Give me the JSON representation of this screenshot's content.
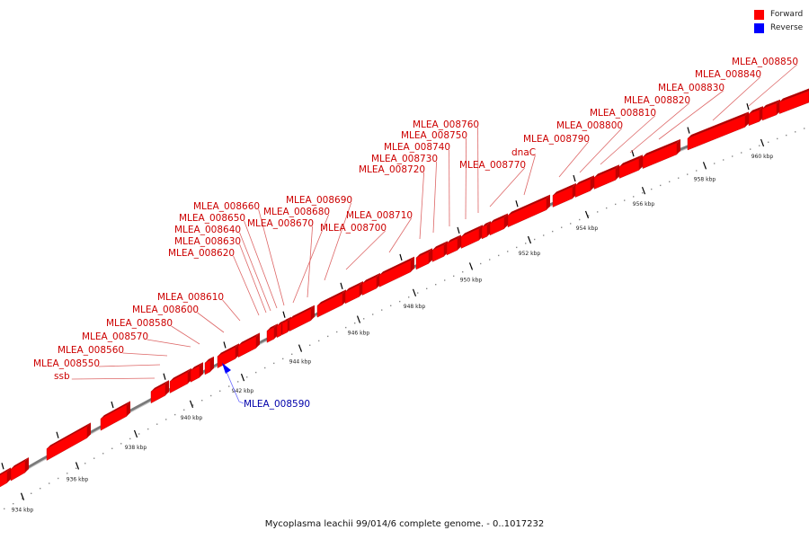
{
  "legend": {
    "forward_label": "Forward",
    "reverse_label": "Reverse",
    "forward_color": "#ff0000",
    "reverse_color": "#0000ff"
  },
  "footer": "Mycoplasma leachii 99/014/6 complete genome. - 0..1017232",
  "ticks": [
    "934 kbp",
    "936 kbp",
    "938 kbp",
    "940 kbp",
    "942 kbp",
    "944 kbp",
    "946 kbp",
    "948 kbp",
    "950 kbp",
    "952 kbp",
    "954 kbp",
    "956 kbp",
    "958 kbp",
    "960 kbp"
  ],
  "genes": [
    {
      "name": "ssb",
      "strand": "forward"
    },
    {
      "name": "MLEA_008550",
      "strand": "forward"
    },
    {
      "name": "MLEA_008560",
      "strand": "forward"
    },
    {
      "name": "MLEA_008570",
      "strand": "forward"
    },
    {
      "name": "MLEA_008580",
      "strand": "forward"
    },
    {
      "name": "MLEA_008590",
      "strand": "reverse"
    },
    {
      "name": "MLEA_008600",
      "strand": "forward"
    },
    {
      "name": "MLEA_008610",
      "strand": "forward"
    },
    {
      "name": "MLEA_008620",
      "strand": "forward"
    },
    {
      "name": "MLEA_008630",
      "strand": "forward"
    },
    {
      "name": "MLEA_008640",
      "strand": "forward"
    },
    {
      "name": "MLEA_008650",
      "strand": "forward"
    },
    {
      "name": "MLEA_008660",
      "strand": "forward"
    },
    {
      "name": "MLEA_008670",
      "strand": "forward"
    },
    {
      "name": "MLEA_008680",
      "strand": "forward"
    },
    {
      "name": "MLEA_008690",
      "strand": "forward"
    },
    {
      "name": "MLEA_008700",
      "strand": "forward"
    },
    {
      "name": "MLEA_008710",
      "strand": "forward"
    },
    {
      "name": "MLEA_008720",
      "strand": "forward"
    },
    {
      "name": "MLEA_008730",
      "strand": "forward"
    },
    {
      "name": "MLEA_008740",
      "strand": "forward"
    },
    {
      "name": "MLEA_008750",
      "strand": "forward"
    },
    {
      "name": "MLEA_008760",
      "strand": "forward"
    },
    {
      "name": "MLEA_008770",
      "strand": "forward"
    },
    {
      "name": "dnaC",
      "strand": "forward"
    },
    {
      "name": "MLEA_008790",
      "strand": "forward"
    },
    {
      "name": "MLEA_008800",
      "strand": "forward"
    },
    {
      "name": "MLEA_008810",
      "strand": "forward"
    },
    {
      "name": "MLEA_008820",
      "strand": "forward"
    },
    {
      "name": "MLEA_008830",
      "strand": "forward"
    },
    {
      "name": "MLEA_008840",
      "strand": "forward"
    },
    {
      "name": "MLEA_008850",
      "strand": "forward"
    }
  ]
}
